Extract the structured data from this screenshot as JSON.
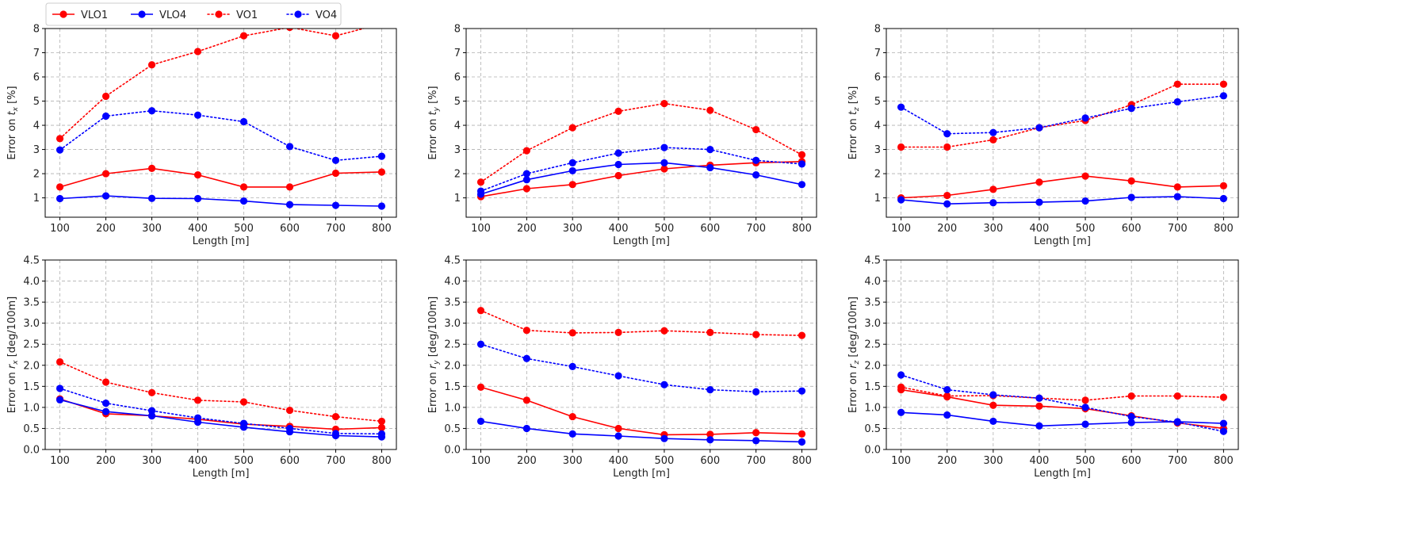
{
  "colors": {
    "vlo1": "#ff0000",
    "vlo4": "#0000ff",
    "vo1": "#ff0000",
    "vo4": "#0000ff",
    "grid": "#b0b0b0"
  },
  "legend": {
    "location": "top-left",
    "entries": [
      {
        "key": "vlo1",
        "label": "VLO1",
        "style": "solid"
      },
      {
        "key": "vlo4",
        "label": "VLO4",
        "style": "solid"
      },
      {
        "key": "vo1",
        "label": "VO1",
        "style": "dotted"
      },
      {
        "key": "vo4",
        "label": "VO4",
        "style": "dotted"
      }
    ]
  },
  "chart_data": [
    {
      "type": "line",
      "xlabel": "Length [m]",
      "ylabel_prefix": "Error on ",
      "ylabel_var": "t",
      "ylabel_sub": "x",
      "ylabel_suffix": " [%]",
      "x": [
        100,
        200,
        300,
        400,
        500,
        600,
        700,
        800
      ],
      "ylim": [
        0.2,
        8
      ],
      "yticks": [
        "1",
        "2",
        "3",
        "4",
        "5",
        "6",
        "7",
        "8"
      ],
      "grid": true,
      "series": [
        {
          "key": "vlo1",
          "name": "VLO1",
          "values": [
            1.45,
            2.0,
            2.22,
            1.95,
            1.45,
            1.45,
            2.02,
            2.07
          ]
        },
        {
          "key": "vlo4",
          "name": "VLO4",
          "values": [
            0.97,
            1.08,
            0.98,
            0.97,
            0.87,
            0.72,
            0.69,
            0.66
          ]
        },
        {
          "key": "vo1",
          "name": "VO1",
          "values": [
            3.45,
            5.2,
            6.5,
            7.05,
            7.7,
            8.05,
            7.7,
            8.2
          ]
        },
        {
          "key": "vo4",
          "name": "VO4",
          "values": [
            2.98,
            4.38,
            4.6,
            4.42,
            4.15,
            3.12,
            2.55,
            2.72
          ]
        }
      ]
    },
    {
      "type": "line",
      "xlabel": "Length [m]",
      "ylabel_prefix": "Error on ",
      "ylabel_var": "t",
      "ylabel_sub": "y",
      "ylabel_suffix": " [%]",
      "x": [
        100,
        200,
        300,
        400,
        500,
        600,
        700,
        800
      ],
      "ylim": [
        0.2,
        8
      ],
      "yticks": [
        "1",
        "2",
        "3",
        "4",
        "5",
        "6",
        "7",
        "8"
      ],
      "grid": true,
      "series": [
        {
          "key": "vlo1",
          "name": "VLO1",
          "values": [
            1.05,
            1.38,
            1.55,
            1.92,
            2.2,
            2.35,
            2.45,
            2.5
          ]
        },
        {
          "key": "vlo4",
          "name": "VLO4",
          "values": [
            1.15,
            1.75,
            2.12,
            2.38,
            2.45,
            2.25,
            1.95,
            1.55
          ]
        },
        {
          "key": "vo1",
          "name": "VO1",
          "values": [
            1.65,
            2.95,
            3.9,
            4.58,
            4.9,
            4.62,
            3.82,
            2.78
          ]
        },
        {
          "key": "vo4",
          "name": "VO4",
          "values": [
            1.28,
            2.0,
            2.45,
            2.85,
            3.08,
            3.0,
            2.55,
            2.4
          ]
        }
      ]
    },
    {
      "type": "line",
      "xlabel": "Length [m]",
      "ylabel_prefix": "Error on ",
      "ylabel_var": "t",
      "ylabel_sub": "z",
      "ylabel_suffix": " [%]",
      "x": [
        100,
        200,
        300,
        400,
        500,
        600,
        700,
        800
      ],
      "ylim": [
        0.2,
        8
      ],
      "yticks": [
        "1",
        "2",
        "3",
        "4",
        "5",
        "6",
        "7",
        "8"
      ],
      "grid": true,
      "series": [
        {
          "key": "vlo1",
          "name": "VLO1",
          "values": [
            1.0,
            1.1,
            1.35,
            1.65,
            1.9,
            1.7,
            1.45,
            1.5
          ]
        },
        {
          "key": "vlo4",
          "name": "VLO4",
          "values": [
            0.92,
            0.75,
            0.8,
            0.82,
            0.87,
            1.02,
            1.05,
            0.97
          ]
        },
        {
          "key": "vo1",
          "name": "VO1",
          "values": [
            3.1,
            3.1,
            3.4,
            3.9,
            4.2,
            4.85,
            5.7,
            5.7
          ]
        },
        {
          "key": "vo4",
          "name": "VO4",
          "values": [
            4.75,
            3.65,
            3.7,
            3.9,
            4.3,
            4.7,
            4.97,
            5.22
          ]
        }
      ]
    },
    {
      "type": "line",
      "xlabel": "Length [m]",
      "ylabel_prefix": "Error on ",
      "ylabel_var": "r",
      "ylabel_sub": "x",
      "ylabel_suffix": " [deg/100m]",
      "x": [
        100,
        200,
        300,
        400,
        500,
        600,
        700,
        800
      ],
      "ylim": [
        0,
        4.5
      ],
      "yticks": [
        "0.0",
        "0.5",
        "1.0",
        "1.5",
        "2.0",
        "2.5",
        "3.0",
        "3.5",
        "4.0",
        "4.5"
      ],
      "grid": true,
      "series": [
        {
          "key": "vlo1",
          "name": "VLO1",
          "values": [
            1.2,
            0.85,
            0.8,
            0.72,
            0.6,
            0.55,
            0.48,
            0.52
          ]
        },
        {
          "key": "vlo4",
          "name": "VLO4",
          "values": [
            1.18,
            0.9,
            0.8,
            0.65,
            0.53,
            0.42,
            0.33,
            0.3
          ]
        },
        {
          "key": "vo1",
          "name": "VO1",
          "values": [
            2.08,
            1.6,
            1.35,
            1.17,
            1.13,
            0.93,
            0.78,
            0.67
          ]
        },
        {
          "key": "vo4",
          "name": "VO4",
          "values": [
            1.45,
            1.1,
            0.92,
            0.75,
            0.62,
            0.5,
            0.38,
            0.37
          ]
        }
      ]
    },
    {
      "type": "line",
      "xlabel": "Length [m]",
      "ylabel_prefix": "Error on ",
      "ylabel_var": "r",
      "ylabel_sub": "y",
      "ylabel_suffix": " [deg/100m]",
      "x": [
        100,
        200,
        300,
        400,
        500,
        600,
        700,
        800
      ],
      "ylim": [
        0,
        4.5
      ],
      "yticks": [
        "0.0",
        "0.5",
        "1.0",
        "1.5",
        "2.0",
        "2.5",
        "3.0",
        "3.5",
        "4.0",
        "4.5"
      ],
      "grid": true,
      "series": [
        {
          "key": "vlo1",
          "name": "VLO1",
          "values": [
            1.48,
            1.17,
            0.78,
            0.5,
            0.35,
            0.36,
            0.4,
            0.37
          ]
        },
        {
          "key": "vlo4",
          "name": "VLO4",
          "values": [
            0.67,
            0.5,
            0.37,
            0.32,
            0.26,
            0.23,
            0.21,
            0.18
          ]
        },
        {
          "key": "vo1",
          "name": "VO1",
          "values": [
            3.3,
            2.83,
            2.77,
            2.78,
            2.82,
            2.78,
            2.73,
            2.71
          ]
        },
        {
          "key": "vo4",
          "name": "VO4",
          "values": [
            2.5,
            2.16,
            1.97,
            1.75,
            1.54,
            1.42,
            1.37,
            1.39
          ]
        }
      ]
    },
    {
      "type": "line",
      "xlabel": "Length [m]",
      "ylabel_prefix": "Error on ",
      "ylabel_var": "r",
      "ylabel_sub": "z",
      "ylabel_suffix": " [deg/100m]",
      "x": [
        100,
        200,
        300,
        400,
        500,
        600,
        700,
        800
      ],
      "ylim": [
        0,
        4.5
      ],
      "yticks": [
        "0.0",
        "0.5",
        "1.0",
        "1.5",
        "2.0",
        "2.5",
        "3.0",
        "3.5",
        "4.0",
        "4.5"
      ],
      "grid": true,
      "series": [
        {
          "key": "vlo1",
          "name": "VLO1",
          "values": [
            1.42,
            1.25,
            1.05,
            1.03,
            0.97,
            0.8,
            0.63,
            0.5
          ]
        },
        {
          "key": "vlo4",
          "name": "VLO4",
          "values": [
            0.88,
            0.82,
            0.67,
            0.56,
            0.6,
            0.64,
            0.66,
            0.62
          ]
        },
        {
          "key": "vo1",
          "name": "VO1",
          "values": [
            1.48,
            1.27,
            1.28,
            1.22,
            1.17,
            1.27,
            1.27,
            1.24
          ]
        },
        {
          "key": "vo4",
          "name": "VO4",
          "values": [
            1.77,
            1.42,
            1.3,
            1.22,
            1.0,
            0.78,
            0.65,
            0.43
          ]
        }
      ]
    }
  ]
}
